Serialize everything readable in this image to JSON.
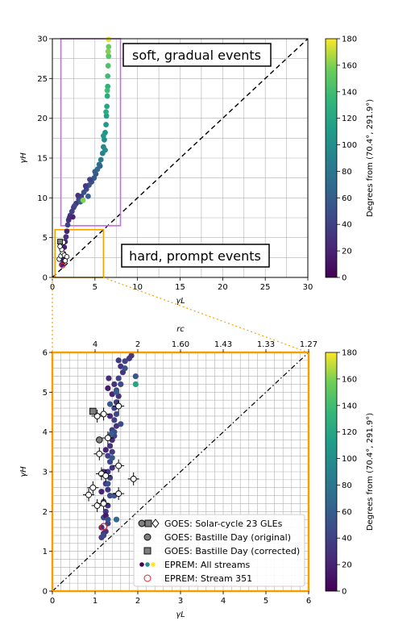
{
  "colors": {
    "soft_box": "#cc66ee",
    "hard_box": "#f5a000",
    "grid": "#b0b0b0",
    "diag": "#000000",
    "stream351": "#d62728",
    "goes_face": "#7f7f7f",
    "goes_open": "#ffffff",
    "colormap": "viridis"
  },
  "chart_data": [
    {
      "id": "top",
      "type": "scatter",
      "xlabel": "γL",
      "ylabel": "γH",
      "xlim": [
        0,
        30
      ],
      "ylim": [
        0,
        30
      ],
      "xticks": [
        "0",
        "5",
        "10",
        "15",
        "20",
        "25",
        "30"
      ],
      "yticks": [
        "0",
        "5",
        "10",
        "15",
        "20",
        "25",
        "30"
      ],
      "grid": true,
      "annotations": [
        {
          "text": "soft, gradual events",
          "color": "#cc66ee"
        },
        {
          "text": "hard, prompt events",
          "color": "#f5a000"
        }
      ],
      "boxes": [
        {
          "name": "soft",
          "x": [
            1.0,
            8.0
          ],
          "y": [
            6.5,
            30
          ]
        },
        {
          "name": "hard",
          "x": [
            0.3,
            6.0
          ],
          "y": [
            0,
            6.0
          ]
        }
      ],
      "colorbar": {
        "label": "Degrees from (70.4°, 291.9°)",
        "range": [
          0,
          180
        ],
        "ticks": [
          "0",
          "20",
          "40",
          "60",
          "80",
          "100",
          "120",
          "140",
          "160",
          "180"
        ]
      },
      "series": [
        {
          "name": "EPREM: All streams",
          "note_x_y_deg": [
            [
              1.1,
              1.6,
              20
            ],
            [
              1.3,
              2.0,
              15
            ],
            [
              1.2,
              2.4,
              25
            ],
            [
              1.3,
              3.0,
              30
            ],
            [
              1.4,
              3.8,
              20
            ],
            [
              1.5,
              4.5,
              25
            ],
            [
              1.6,
              5.1,
              30
            ],
            [
              1.7,
              5.8,
              20
            ],
            [
              1.8,
              6.6,
              40
            ],
            [
              1.9,
              7.2,
              30
            ],
            [
              2.1,
              7.8,
              35
            ],
            [
              2.3,
              8.3,
              40
            ],
            [
              2.5,
              8.8,
              35
            ],
            [
              2.8,
              9.3,
              30
            ],
            [
              3.1,
              9.8,
              45
            ],
            [
              3.4,
              10.2,
              40
            ],
            [
              3.7,
              10.7,
              50
            ],
            [
              4.0,
              11.1,
              45
            ],
            [
              4.3,
              11.6,
              55
            ],
            [
              4.6,
              12.0,
              50
            ],
            [
              4.9,
              12.5,
              60
            ],
            [
              5.1,
              13.0,
              55
            ],
            [
              5.3,
              13.6,
              70
            ],
            [
              5.5,
              14.2,
              75
            ],
            [
              5.7,
              14.8,
              85
            ],
            [
              5.9,
              15.6,
              90
            ],
            [
              6.0,
              16.4,
              95
            ],
            [
              6.1,
              17.3,
              100
            ],
            [
              6.2,
              18.2,
              105
            ],
            [
              6.3,
              19.2,
              110
            ],
            [
              6.35,
              20.3,
              115
            ],
            [
              6.4,
              21.5,
              120
            ],
            [
              6.45,
              22.8,
              125
            ],
            [
              6.5,
              24.0,
              130
            ],
            [
              6.5,
              25.3,
              140
            ],
            [
              6.55,
              26.6,
              145
            ],
            [
              6.6,
              27.8,
              150
            ],
            [
              6.6,
              29.0,
              155
            ],
            [
              6.6,
              29.9,
              175
            ],
            [
              2.0,
              7.5,
              25
            ],
            [
              2.6,
              9.0,
              45
            ],
            [
              3.0,
              10.3,
              30
            ],
            [
              3.9,
              11.5,
              35
            ],
            [
              4.4,
              12.3,
              40
            ],
            [
              5.0,
              13.3,
              60
            ],
            [
              5.6,
              14.0,
              65
            ],
            [
              6.2,
              16.0,
              100
            ],
            [
              6.0,
              17.8,
              110
            ],
            [
              6.3,
              20.8,
              125
            ],
            [
              6.45,
              23.5,
              140
            ],
            [
              6.55,
              28.4,
              160
            ],
            [
              2.4,
              7.6,
              20
            ],
            [
              3.3,
              9.5,
              55
            ],
            [
              4.2,
              10.2,
              60
            ],
            [
              3.6,
              9.7,
              160
            ]
          ]
        },
        {
          "name": "GOES: Solar-cycle 23 GLEs",
          "note_x_y": [
            [
              0.8,
              2.3
            ],
            [
              1.0,
              2.7
            ],
            [
              1.2,
              3.1
            ],
            [
              1.4,
              2.8
            ],
            [
              1.7,
              2.6
            ],
            [
              1.1,
              3.5
            ],
            [
              1.3,
              4.4
            ],
            [
              0.9,
              3.9
            ],
            [
              1.5,
              2.1
            ]
          ]
        },
        {
          "name": "GOES: Bastille Day (corrected)",
          "note_x_y": [
            [
              0.9,
              4.5
            ]
          ]
        },
        {
          "name": "EPREM: Stream 351",
          "note_x_y": [
            [
              1.2,
              1.5
            ]
          ]
        }
      ]
    },
    {
      "id": "bottom",
      "type": "scatter",
      "xlabel": "γL",
      "ylabel": "γH",
      "top_axis_label": "rc",
      "xlim": [
        0,
        6
      ],
      "ylim": [
        0,
        6
      ],
      "xticks": [
        "0",
        "1",
        "2",
        "3",
        "4",
        "5",
        "6"
      ],
      "yticks": [
        "0",
        "1",
        "2",
        "3",
        "4",
        "5",
        "6"
      ],
      "top_ticks": [
        {
          "x": 1.0,
          "label": "4"
        },
        {
          "x": 2.0,
          "label": "2"
        },
        {
          "x": 3.0,
          "label": "1.60"
        },
        {
          "x": 4.0,
          "label": "1.43"
        },
        {
          "x": 5.0,
          "label": "1.33"
        },
        {
          "x": 6.0,
          "label": "1.27"
        }
      ],
      "grid": true,
      "colorbar": {
        "label": "Degrees from (70.4°, 291.9°)",
        "range": [
          0,
          180
        ],
        "ticks": [
          "0",
          "20",
          "40",
          "60",
          "80",
          "100",
          "120",
          "140",
          "160",
          "180"
        ]
      },
      "legend": {
        "placement": "lower-right",
        "entries": [
          "GOES: Solar-cycle 23 GLEs",
          "GOES: Bastille Day (original)",
          "GOES: Bastille Day (corrected)",
          "EPREM: All streams",
          "EPREM: Stream 351"
        ]
      },
      "series": [
        {
          "name": "EPREM: All streams",
          "note_x_y_deg": [
            [
              1.15,
              1.35,
              40
            ],
            [
              1.2,
              1.45,
              35
            ],
            [
              1.25,
              1.5,
              30
            ],
            [
              1.15,
              1.6,
              25
            ],
            [
              1.3,
              1.7,
              40
            ],
            [
              1.2,
              1.85,
              45
            ],
            [
              1.25,
              2.0,
              35
            ],
            [
              1.3,
              2.15,
              30
            ],
            [
              1.2,
              2.25,
              40
            ],
            [
              1.35,
              2.4,
              45
            ],
            [
              1.3,
              2.55,
              35
            ],
            [
              1.25,
              2.7,
              30
            ],
            [
              1.35,
              2.85,
              40
            ],
            [
              1.3,
              3.0,
              35
            ],
            [
              1.4,
              3.1,
              30
            ],
            [
              1.35,
              3.25,
              45
            ],
            [
              1.3,
              3.4,
              40
            ],
            [
              1.4,
              3.5,
              35
            ],
            [
              1.35,
              3.65,
              30
            ],
            [
              1.4,
              3.8,
              25
            ],
            [
              1.45,
              3.9,
              40
            ],
            [
              1.4,
              4.05,
              35
            ],
            [
              1.5,
              4.15,
              30
            ],
            [
              1.45,
              4.3,
              40
            ],
            [
              1.5,
              4.45,
              45
            ],
            [
              1.45,
              4.6,
              40
            ],
            [
              1.5,
              4.75,
              35
            ],
            [
              1.55,
              4.9,
              30
            ],
            [
              1.5,
              5.05,
              40
            ],
            [
              1.6,
              5.2,
              45
            ],
            [
              1.55,
              5.35,
              40
            ],
            [
              1.65,
              5.5,
              35
            ],
            [
              1.6,
              5.65,
              30
            ],
            [
              1.7,
              5.78,
              40
            ],
            [
              1.8,
              5.85,
              35
            ],
            [
              1.85,
              5.92,
              30
            ],
            [
              1.55,
              5.8,
              35
            ],
            [
              1.45,
              5.2,
              30
            ],
            [
              1.4,
              4.95,
              20
            ],
            [
              1.3,
              5.1,
              15
            ],
            [
              1.35,
              4.4,
              25
            ],
            [
              1.25,
              3.55,
              20
            ],
            [
              1.2,
              3.0,
              25
            ],
            [
              1.15,
              2.5,
              20
            ],
            [
              1.25,
              1.9,
              15
            ],
            [
              1.35,
              4.7,
              55
            ],
            [
              1.45,
              4.0,
              50
            ],
            [
              1.6,
              4.2,
              45
            ],
            [
              1.95,
              5.2,
              120
            ],
            [
              1.95,
              5.4,
              55
            ],
            [
              1.7,
              5.6,
              50
            ],
            [
              1.5,
              5.0,
              60
            ],
            [
              1.4,
              3.35,
              55
            ],
            [
              1.3,
              2.7,
              50
            ],
            [
              1.45,
              2.4,
              55
            ],
            [
              1.3,
              1.8,
              50
            ],
            [
              1.2,
              1.4,
              45
            ],
            [
              1.38,
              3.95,
              60
            ],
            [
              1.5,
              1.8,
              70
            ],
            [
              1.32,
              5.35,
              25
            ]
          ]
        },
        {
          "name": "GOES: Solar-cycle 23 GLEs",
          "note_x_y": [
            [
              0.85,
              2.42
            ],
            [
              0.95,
              2.6
            ],
            [
              1.05,
              2.15
            ],
            [
              1.15,
              2.95
            ],
            [
              1.25,
              2.9
            ],
            [
              1.55,
              3.15
            ],
            [
              1.55,
              2.45
            ],
            [
              1.9,
              2.82
            ],
            [
              1.1,
              3.45
            ],
            [
              1.2,
              4.45
            ],
            [
              1.3,
              3.85
            ],
            [
              1.05,
              4.4
            ],
            [
              1.55,
              4.65
            ],
            [
              1.2,
              2.2
            ]
          ]
        },
        {
          "name": "GOES: Bastille Day (original)",
          "note_x_y": [
            [
              1.1,
              3.8
            ]
          ]
        },
        {
          "name": "GOES: Bastille Day (corrected)",
          "note_x_y": [
            [
              0.95,
              4.52
            ]
          ]
        },
        {
          "name": "EPREM: Stream 351",
          "note_x_y": [
            [
              1.2,
              1.62
            ]
          ]
        }
      ]
    }
  ]
}
